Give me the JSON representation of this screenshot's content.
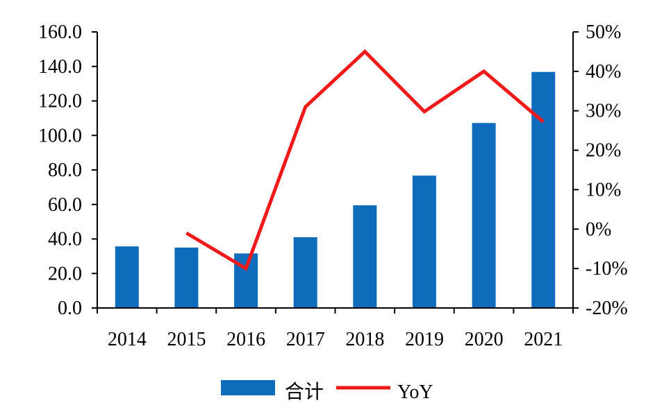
{
  "chart_data": {
    "type": "bar+line",
    "categories": [
      "2014",
      "2015",
      "2016",
      "2017",
      "2018",
      "2019",
      "2020",
      "2021"
    ],
    "series": [
      {
        "name": "合计",
        "type": "bar",
        "axis": "left",
        "values": [
          35.7,
          35.0,
          31.6,
          41.0,
          59.5,
          76.7,
          107.2,
          136.8
        ]
      },
      {
        "name": "YoY",
        "type": "line",
        "axis": "right",
        "values": [
          null,
          -1.0,
          -10.0,
          31.0,
          45.0,
          29.8,
          40.0,
          27.2
        ]
      }
    ],
    "y_left": {
      "ylim": [
        0,
        160
      ],
      "ticks": [
        0,
        20,
        40,
        60,
        80,
        100,
        120,
        140,
        160
      ],
      "tick_labels": [
        "0.0",
        "20.0",
        "40.0",
        "60.0",
        "80.0",
        "100.0",
        "120.0",
        "140.0",
        "160.0"
      ]
    },
    "y_right": {
      "ylim": [
        -20,
        50
      ],
      "ticks": [
        -20,
        -10,
        0,
        10,
        20,
        30,
        40,
        50
      ],
      "tick_labels": [
        "-20%",
        "-10%",
        "0%",
        "10%",
        "20%",
        "30%",
        "40%",
        "50%"
      ]
    },
    "colors": {
      "bar": "#0f6cbd",
      "line": "#f01a1a",
      "axis": "#000000"
    },
    "grid": false,
    "legend": {
      "placement": "bottom-center",
      "items": [
        {
          "label": "合计",
          "kind": "bar"
        },
        {
          "label": "YoY",
          "kind": "line"
        }
      ]
    }
  }
}
